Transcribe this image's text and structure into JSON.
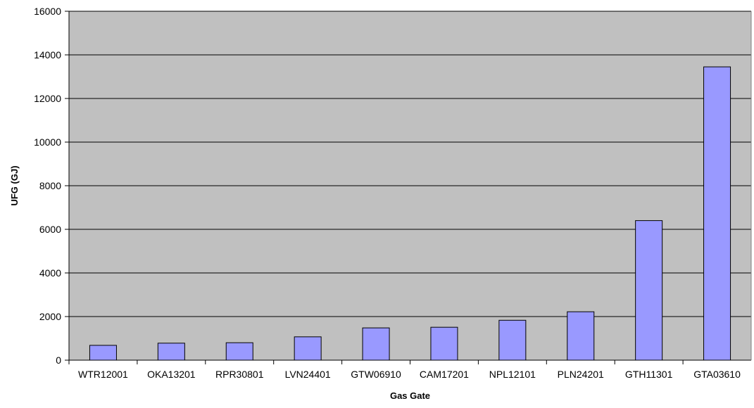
{
  "chart_data": {
    "type": "bar",
    "title": "",
    "xlabel": "Gas Gate",
    "ylabel": "UFG (GJ)",
    "ylim": [
      0,
      16000
    ],
    "yticks": [
      0,
      2000,
      4000,
      6000,
      8000,
      10000,
      12000,
      14000,
      16000
    ],
    "ytick_labels": [
      "0",
      "2000",
      "4000",
      "6000",
      "8000",
      "10000",
      "12000",
      "14000",
      "16000"
    ],
    "categories": [
      "WTR12001",
      "OKA13201",
      "RPR30801",
      "LVN24401",
      "GTW06910",
      "CAM17201",
      "NPL12101",
      "PLN24201",
      "GTH11301",
      "GTA03610"
    ],
    "values": [
      680,
      780,
      800,
      1070,
      1480,
      1510,
      1830,
      2220,
      6400,
      13450
    ],
    "grid": true,
    "legend": "none",
    "colors": {
      "plot_background": "#c0c0c0",
      "bar_fill": "#9999ff",
      "bar_stroke": "#000000",
      "gridline": "#000000"
    }
  }
}
